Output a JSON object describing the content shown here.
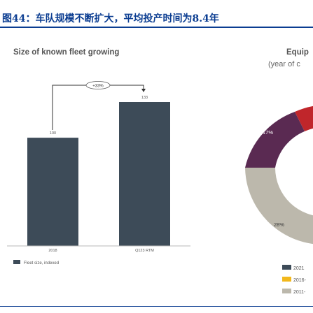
{
  "figure_title": "图44：车队规模不断扩大，平均投产时间为8.4年",
  "colors": {
    "title_blue": "#0b3d91",
    "bar": "#3d4b58",
    "text_grey": "#555555"
  },
  "chart_data": [
    {
      "type": "bar",
      "title": "Size of known fleet growing",
      "categories": [
        "2018",
        "Q123 RTM"
      ],
      "values": [
        100,
        133
      ],
      "data_labels": [
        "100",
        "133"
      ],
      "annotation": "+33%",
      "legend": [
        "Fleet size, indexed"
      ],
      "legend_position": "bottom-left",
      "ylim": [
        0,
        140
      ],
      "grid": false
    },
    {
      "type": "pie",
      "title": "Equip",
      "subtitle": "(year of c",
      "slices": [
        {
          "label": "17%",
          "value": 17,
          "color": "#5a2a52"
        },
        {
          "label": "28%",
          "value": 28,
          "color": "#bcb8ac"
        },
        {
          "label": "",
          "value": 5,
          "color": "#c0262b"
        }
      ],
      "legend": [
        {
          "label": "2021",
          "color": "#3d4b58"
        },
        {
          "label": "2016-",
          "color": "#f2b81c"
        },
        {
          "label": "2011-",
          "color": "#bcb8ac"
        }
      ],
      "legend_position": "bottom"
    }
  ]
}
